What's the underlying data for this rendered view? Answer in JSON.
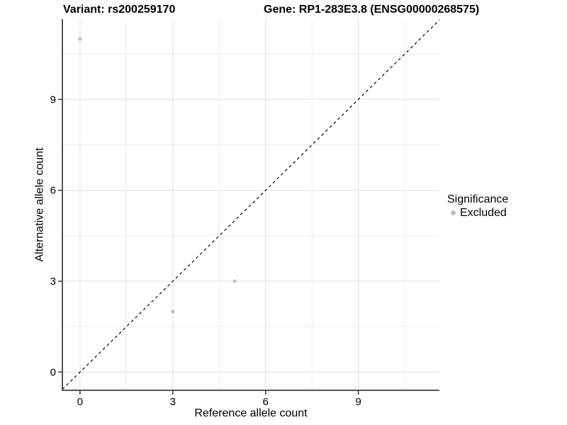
{
  "figure": {
    "title_variant": "Variant: rs200259170",
    "title_gene": "Gene: RP1-283E3.8 (ENSG00000268575)"
  },
  "legend": {
    "title": "Significance",
    "items": [
      {
        "label": "Excluded",
        "color": "#bdbdbd",
        "marker": "circle-icon"
      }
    ]
  },
  "chart_data": {
    "type": "scatter",
    "title": "Variant: rs200259170 | Gene: RP1-283E3.8 (ENSG00000268575)",
    "xlabel": "Reference allele count",
    "ylabel": "Alternative allele count",
    "xlim": [
      -0.57,
      11.62
    ],
    "ylim": [
      -0.6,
      11.65
    ],
    "x_ticks": [
      0,
      3,
      6,
      9
    ],
    "y_ticks": [
      0,
      3,
      6,
      9
    ],
    "x_minor_ticks": [
      1.5,
      4.5,
      7.5,
      10.5
    ],
    "y_minor_ticks": [
      1.5,
      4.5,
      7.5,
      10.5
    ],
    "grid": "major+minor",
    "legend_position": "right",
    "series": [
      {
        "name": "Excluded",
        "color": "#bdbdbd",
        "points": [
          [
            0,
            11
          ],
          [
            3,
            2
          ],
          [
            5,
            3
          ]
        ]
      }
    ],
    "reference_line": {
      "kind": "identity y=x",
      "style": "dashed",
      "color": "#000000"
    }
  },
  "style": {
    "background": "#ffffff",
    "grid_major": "#e2e2e2",
    "grid_minor": "#ececec",
    "axis_line": "#555555",
    "tick_mark": "#333333",
    "text_color": "#000000",
    "point_radius": 2.6
  }
}
